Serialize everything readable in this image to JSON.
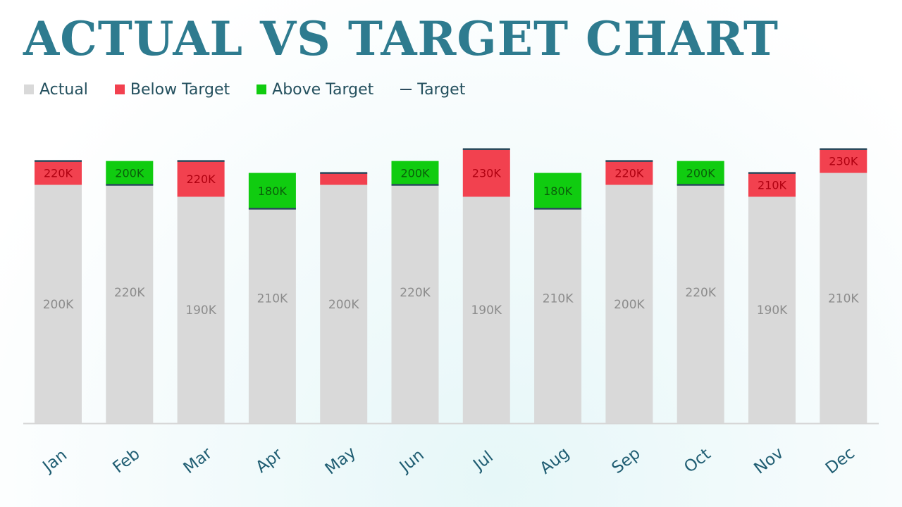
{
  "title": "ACTUAL VS TARGET CHART",
  "colors": {
    "actual": "#d9d9d9",
    "below": "#f2414f",
    "above": "#10cc10",
    "target_line": "#2b4a5c",
    "title": "#2e7b8f",
    "axis_label": "#1f5d72",
    "actual_label": "#8c8c8c"
  },
  "legend": [
    {
      "label": "Actual",
      "key": "actual"
    },
    {
      "label": "Below Target",
      "key": "below"
    },
    {
      "label": "Above Target",
      "key": "above"
    },
    {
      "label": "Target",
      "key": "target"
    }
  ],
  "chart_data": {
    "type": "bar",
    "categories": [
      "Jan",
      "Feb",
      "Mar",
      "Apr",
      "May",
      "Jun",
      "Jul",
      "Aug",
      "Sep",
      "Oct",
      "Nov",
      "Dec"
    ],
    "series": [
      {
        "name": "Actual",
        "values": [
          200,
          220,
          190,
          210,
          200,
          220,
          190,
          210,
          200,
          220,
          190,
          210
        ]
      },
      {
        "name": "Target",
        "values": [
          220,
          200,
          220,
          180,
          210,
          200,
          230,
          180,
          220,
          200,
          210,
          230
        ]
      }
    ],
    "difference_labels": [
      "220K",
      "200K",
      "220K",
      "180K",
      "",
      "200K",
      "230K",
      "180K",
      "220K",
      "200K",
      "210K",
      "230K"
    ],
    "actual_labels": [
      "200K",
      "220K",
      "190K",
      "210K",
      "200K",
      "220K",
      "190K",
      "210K",
      "200K",
      "220K",
      "190K",
      "210K"
    ],
    "unit": "K",
    "stacked": true,
    "legend_position": "top-left",
    "grid": false
  }
}
